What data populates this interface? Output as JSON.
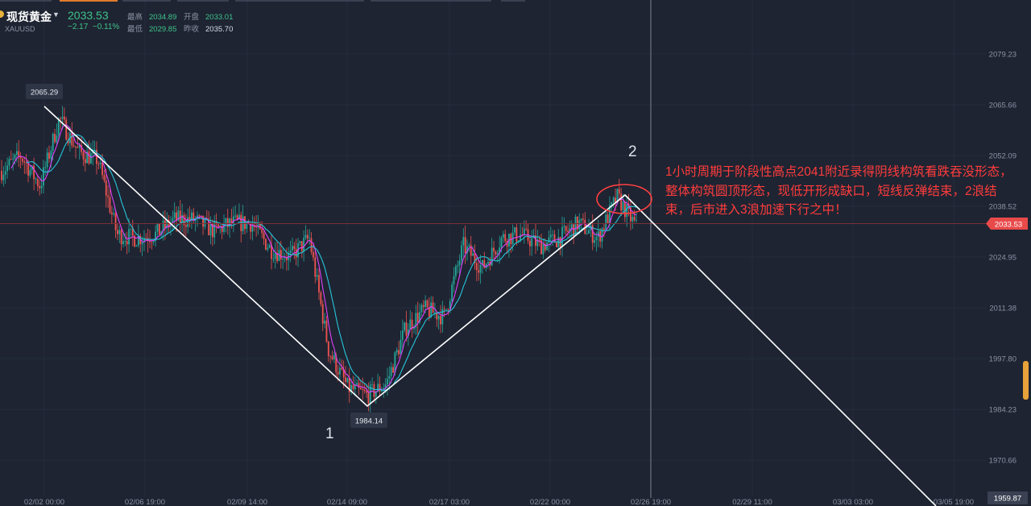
{
  "header": {
    "symbol_name": "现货黄金",
    "symbol_code": "XAUUSD",
    "last_price": "2033.53",
    "change": "−2.17",
    "change_pct": "−0.11%",
    "stats": [
      {
        "label": "最高",
        "value": "2034.89"
      },
      {
        "label": "开盘",
        "value": "2033.01"
      },
      {
        "label": "最低",
        "value": "2029.85"
      },
      {
        "label": "昨收",
        "value": "2035.70"
      }
    ]
  },
  "annotation": {
    "text": "1小时周期于阶段性高点2041附近录得阴线构筑看跌吞没形态，整体构筑圆顶形态，现低开形成缺口，短线反弹结束，2浪结束，后市进入3浪加速下行之中！",
    "wave_1": "1",
    "wave_2": "2",
    "high_label": "2065.29",
    "low_label": "1984.14"
  },
  "colors": {
    "background": "#1e2432",
    "up": "#26a69a",
    "down": "#ef5350",
    "ma_fast": "#e040fb",
    "ma_slow": "#26c6da",
    "annotation": "#ff3c3c",
    "trendline": "#ffffff",
    "current_price_tag": "#e84a4a",
    "accent": "#e07a2e"
  },
  "chart_data": {
    "type": "candlestick",
    "title": "",
    "ylim": [
      1960,
      2085
    ],
    "y_ticks": [
      2079.23,
      2065.66,
      2052.09,
      2038.52,
      2024.95,
      2011.38,
      1997.8,
      1984.23,
      1970.66
    ],
    "y_tick_labels": [
      "2079.23",
      "2065.66",
      "2052.09",
      "2038.52",
      "2024.95",
      "2011.38",
      "1997.80",
      "1984.23",
      "1970.66"
    ],
    "x_tick_labels": [
      "02/02 00:00",
      "02/06 19:00",
      "02/09 14:00",
      "02/14 09:00",
      "02/17 03:00",
      "02/22 00:00",
      "02/26 19:00",
      "02/29 11:00",
      "03/03 03:00",
      "03/05 19:00"
    ],
    "current_price": 2033.53,
    "current_price_label": "2033.53",
    "crosshair_price_label": "1959.87",
    "grid": true,
    "legend": "none",
    "price_anchors": [
      2048,
      2052,
      2044,
      2062,
      2053,
      2051,
      2031,
      2030,
      2031,
      2035,
      2035,
      2032,
      2034,
      2034,
      2027,
      2025,
      2030,
      2000,
      1990,
      1988,
      1991,
      2006,
      2011,
      2009,
      2028,
      2022,
      2030,
      2031,
      2028,
      2030,
      2034,
      2030,
      2041,
      2033
    ],
    "wave_path": [
      {
        "point": "2065.29",
        "wave": "start"
      },
      {
        "point": "1984.14",
        "wave": "1"
      },
      {
        "point": "2041",
        "wave": "2"
      },
      {
        "point": "1959.87",
        "wave": "3"
      }
    ]
  }
}
